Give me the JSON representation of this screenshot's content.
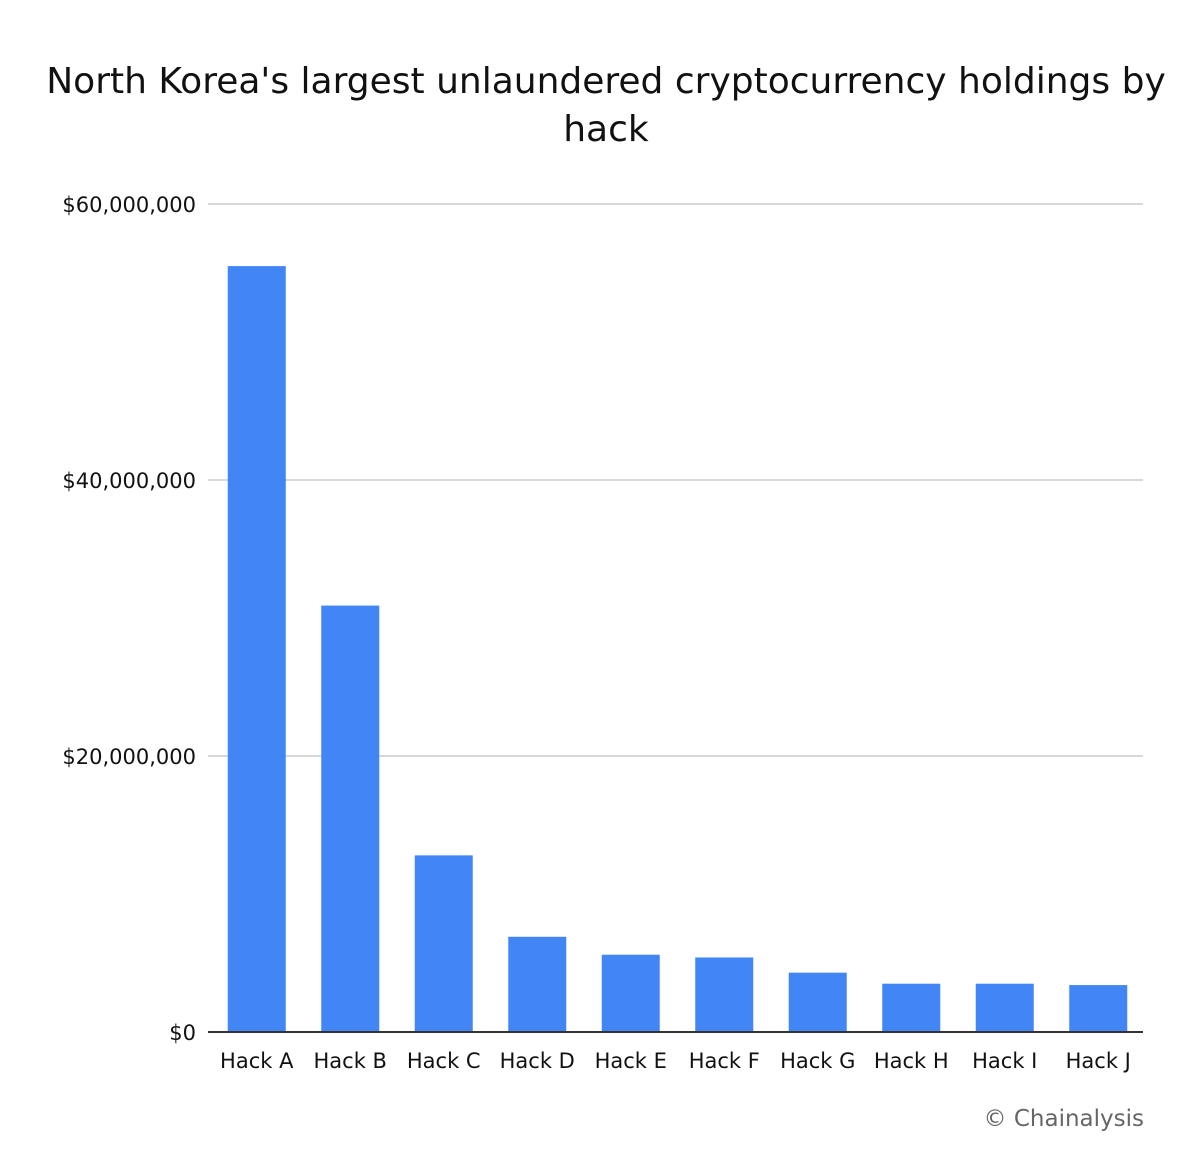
{
  "chart_data": {
    "type": "bar",
    "title": "North Korea's largest unlaundered cryptocurrency holdings by hack",
    "xlabel": "",
    "ylabel": "",
    "categories": [
      "Hack A",
      "Hack B",
      "Hack C",
      "Hack D",
      "Hack E",
      "Hack F",
      "Hack G",
      "Hack H",
      "Hack I",
      "Hack J"
    ],
    "values": [
      55500000,
      30900000,
      12800000,
      6900000,
      5600000,
      5400000,
      4300000,
      3500000,
      3500000,
      3400000
    ],
    "ylim": [
      0,
      60000000
    ],
    "yticks": [
      0,
      20000000,
      40000000,
      60000000
    ],
    "ytick_labels": [
      "$0",
      "$20,000,000",
      "$40,000,000",
      "$60,000,000"
    ],
    "grid": true,
    "legend": "none",
    "bar_color": "#4285f4",
    "grid_color": "#cccccc",
    "axis_color": "#333333"
  },
  "footer": {
    "credit": "© Chainalysis"
  }
}
